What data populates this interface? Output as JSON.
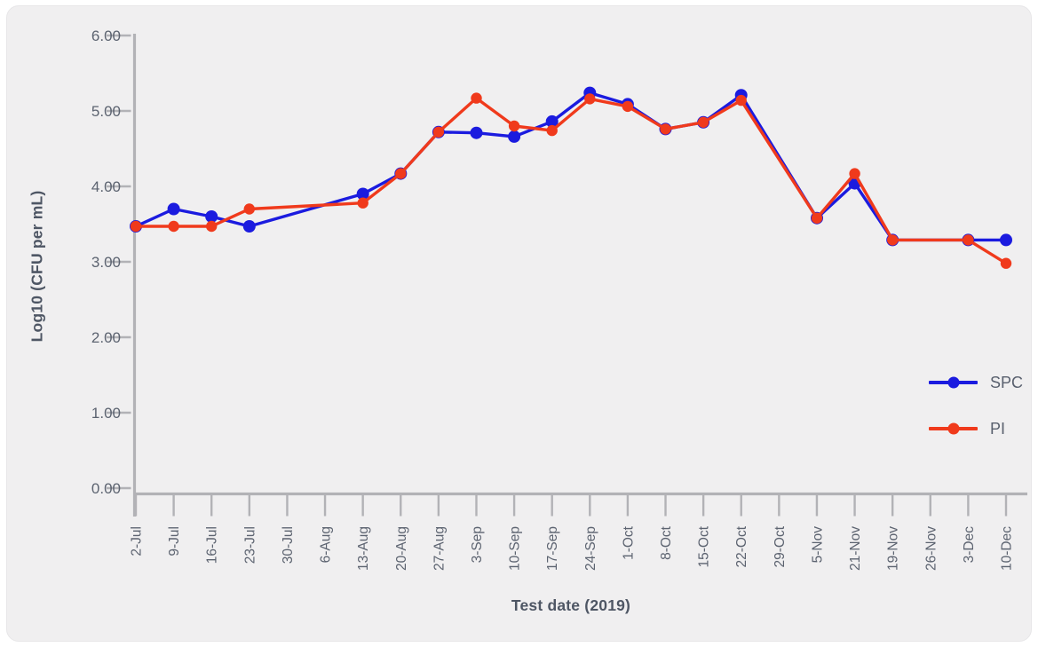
{
  "panel": {
    "background": "#f0eff0"
  },
  "chart_data": {
    "type": "line",
    "title": "",
    "x_axis_title": "Test date (2019)",
    "y_axis_title": "Log10 (CFU per mL)",
    "categories": [
      "2-Jul",
      "9-Jul",
      "16-Jul",
      "23-Jul",
      "30-Jul",
      "6-Aug",
      "13-Aug",
      "20-Aug",
      "27-Aug",
      "3-Sep",
      "10-Sep",
      "17-Sep",
      "24-Sep",
      "1-Oct",
      "8-Oct",
      "15-Oct",
      "22-Oct",
      "29-Oct",
      "5-Nov",
      "21-Nov",
      "19-Nov",
      "26-Nov",
      "3-Dec",
      "10-Dec"
    ],
    "ylim": [
      0,
      6
    ],
    "y_ticks": [
      {
        "value": 6,
        "label": "6.00"
      },
      {
        "value": 5,
        "label": "5.00"
      },
      {
        "value": 4,
        "label": "4.00"
      },
      {
        "value": 3,
        "label": "3.00"
      },
      {
        "value": 2,
        "label": "2.00"
      },
      {
        "value": 1,
        "label": "1.00"
      },
      {
        "value": 0,
        "label": "0.00"
      }
    ],
    "grid": false,
    "legend_position": "middle-right",
    "axis_color": "#b2b2b6",
    "tick_label_color": "#5c6370",
    "axis_title_color": "#4e5664",
    "series": [
      {
        "name": "SPC",
        "color": "#1b1bdf",
        "values": [
          3.47,
          3.7,
          3.6,
          3.47,
          null,
          null,
          3.9,
          4.17,
          4.72,
          4.71,
          4.66,
          4.86,
          5.24,
          5.09,
          4.76,
          4.85,
          5.21,
          null,
          3.58,
          4.04,
          3.29,
          null,
          3.29,
          3.29
        ]
      },
      {
        "name": "PI",
        "color": "#f03a1c",
        "values": [
          3.47,
          3.47,
          3.47,
          3.7,
          null,
          null,
          3.78,
          4.17,
          4.72,
          5.17,
          4.8,
          4.74,
          5.16,
          5.06,
          4.76,
          4.85,
          5.14,
          null,
          3.58,
          4.17,
          3.29,
          null,
          3.29,
          2.98
        ]
      }
    ]
  }
}
